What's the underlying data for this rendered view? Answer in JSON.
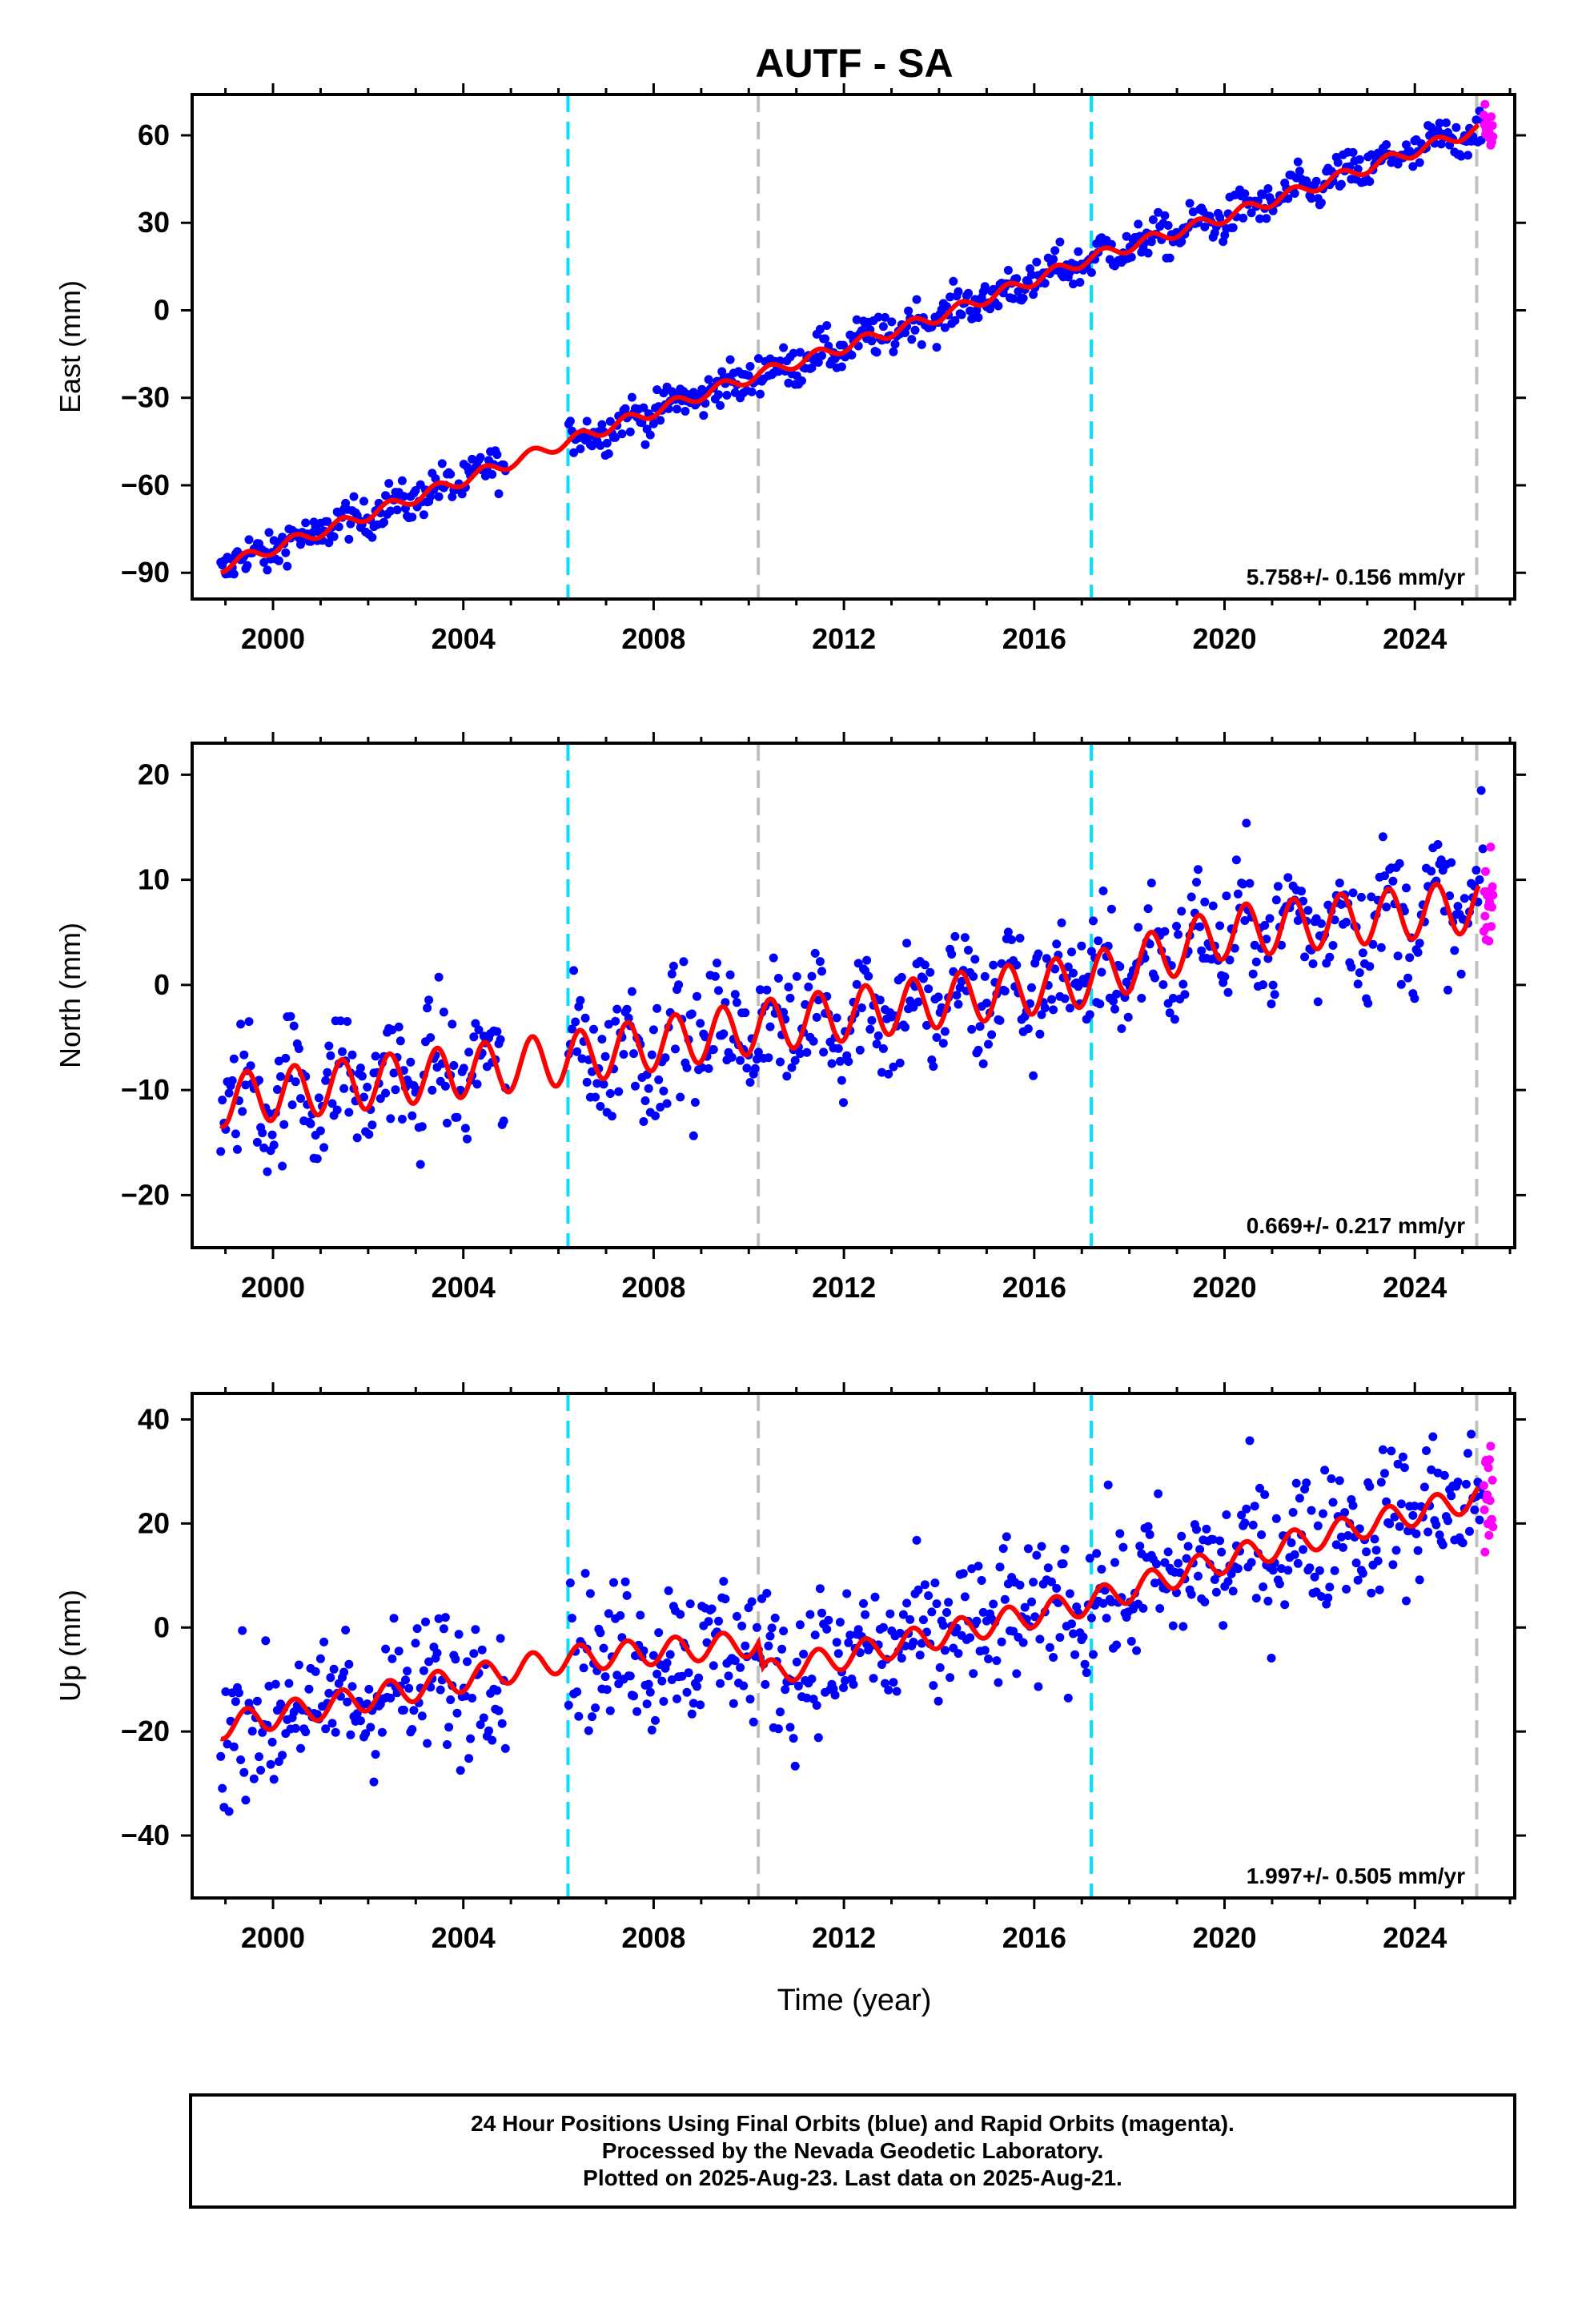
{
  "chart_data": {
    "type": "scatter",
    "title": "AUTF - SA",
    "xlabel": "Time (year)",
    "xlim": [
      1998.3,
      2026.1
    ],
    "x_ticks": [
      2000,
      2004,
      2008,
      2012,
      2016,
      2020,
      2024
    ],
    "vertical_lines": [
      {
        "x": 2006.2,
        "color": "#00e0ff",
        "style": "dashed"
      },
      {
        "x": 2010.2,
        "color": "#c0c0c0",
        "style": "dashed"
      },
      {
        "x": 2017.2,
        "color": "#00e0ff",
        "style": "dashed"
      },
      {
        "x": 2025.3,
        "color": "#c0c0c0",
        "style": "dashed"
      }
    ],
    "colors": {
      "final_orbits": "#0000ff",
      "rapid_orbits": "#ff00ff",
      "model": "#ff0000"
    },
    "panels": [
      {
        "name": "east",
        "ylabel": "East (mm)",
        "ylim": [
          -99,
          74
        ],
        "yticks": [
          -90,
          -60,
          -30,
          0,
          30,
          60
        ],
        "rate_label": "5.758+/- 0.156 mm/yr",
        "model": [
          {
            "x": 1998.9,
            "y": -88
          },
          {
            "x": 2002.0,
            "y": -70
          },
          {
            "x": 2006.2,
            "y": -45
          },
          {
            "x": 2010.2,
            "y": -22
          },
          {
            "x": 2014.0,
            "y": -2
          },
          {
            "x": 2017.2,
            "y": 18
          },
          {
            "x": 2020.0,
            "y": 32
          },
          {
            "x": 2025.3,
            "y": 62
          }
        ],
        "annual_amplitude": 2,
        "scatter": 3.5
      },
      {
        "name": "north",
        "ylabel": "North (mm)",
        "ylim": [
          -25,
          23
        ],
        "yticks": [
          -20,
          -10,
          0,
          10,
          20
        ],
        "rate_label": "0.669+/- 0.217 mm/yr",
        "model": [
          {
            "x": 1998.9,
            "y": -11
          },
          {
            "x": 2006.2,
            "y": -7
          },
          {
            "x": 2010.2,
            "y": -4
          },
          {
            "x": 2017.2,
            "y": 0.5
          },
          {
            "x": 2020.0,
            "y": 5
          },
          {
            "x": 2025.3,
            "y": 7.5
          }
        ],
        "annual_amplitude": 2.5,
        "scatter": 3
      },
      {
        "name": "up",
        "ylabel": "Up (mm)",
        "ylim": [
          -52,
          45
        ],
        "yticks": [
          -40,
          -20,
          0,
          20,
          40
        ],
        "rate_label": "1.997+/- 0.505 mm/yr",
        "model": [
          {
            "x": 1998.9,
            "y": -19
          },
          {
            "x": 2006.2,
            "y": -6
          },
          {
            "x": 2010.2,
            "y": -3
          },
          {
            "x": 2010.3,
            "y": -9
          },
          {
            "x": 2017.2,
            "y": 5
          },
          {
            "x": 2020.0,
            "y": 13
          },
          {
            "x": 2025.3,
            "y": 25
          }
        ],
        "annual_amplitude": 2.5,
        "scatter": 7
      }
    ]
  },
  "footer": {
    "line1": "24 Hour Positions Using Final Orbits (blue) and Rapid Orbits (magenta).",
    "line2": "Processed by the Nevada Geodetic Laboratory.",
    "line3": "Plotted on 2025-Aug-23. Last data on 2025-Aug-21."
  }
}
